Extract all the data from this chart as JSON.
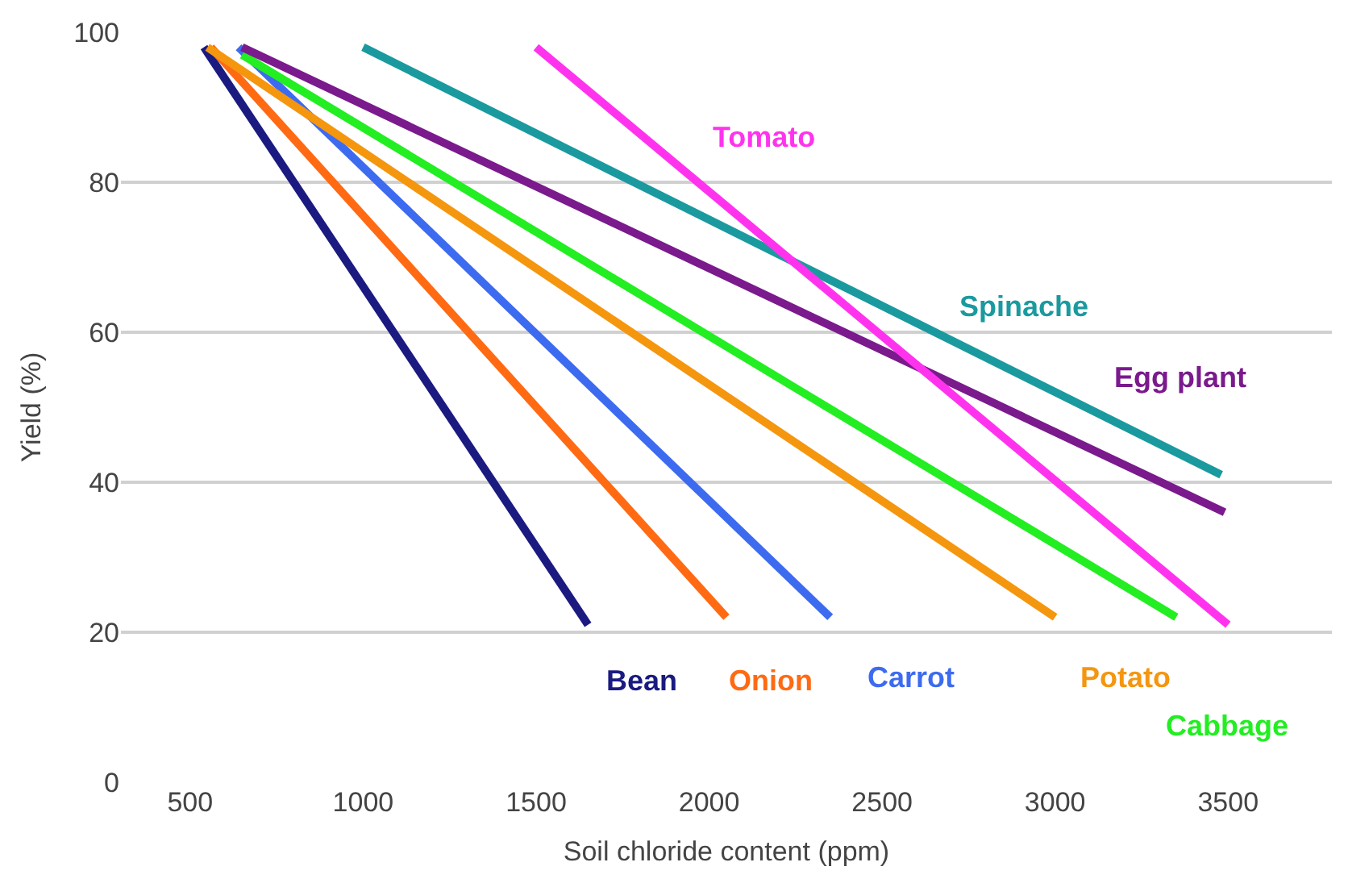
{
  "chart_data": {
    "type": "line",
    "xlabel": "Soil chloride content (ppm)",
    "ylabel": "Yield (%)",
    "xlim": [
      300,
      3800
    ],
    "xticks": [
      500,
      1000,
      1500,
      2000,
      2500,
      3000,
      3500
    ],
    "ylim": [
      0,
      100
    ],
    "yticks": [
      0,
      20,
      40,
      60,
      80,
      100
    ],
    "grid": "y",
    "legend": false,
    "marker": "none",
    "line_style": "solid",
    "series": [
      {
        "name": "Bean",
        "color": "#1a1a80",
        "x": [
          540,
          1650
        ],
        "values": [
          98,
          21
        ]
      },
      {
        "name": "Onion",
        "color": "#ff6a13",
        "x": [
          560,
          2050
        ],
        "values": [
          98,
          22
        ]
      },
      {
        "name": "Carrot",
        "color": "#3d6bf0",
        "x": [
          640,
          2350
        ],
        "values": [
          98,
          22
        ]
      },
      {
        "name": "Potato",
        "color": "#f5960f",
        "x": [
          550,
          3000
        ],
        "values": [
          98,
          22
        ]
      },
      {
        "name": "Cabbage",
        "color": "#22ee22",
        "x": [
          650,
          3350
        ],
        "values": [
          97,
          22
        ]
      },
      {
        "name": "Egg plant",
        "color": "#7a1a8c",
        "x": [
          650,
          3490
        ],
        "values": [
          98,
          36
        ]
      },
      {
        "name": "Spinache",
        "color": "#1a9a9f",
        "x": [
          1000,
          3480
        ],
        "values": [
          98,
          41
        ]
      },
      {
        "name": "Tomato",
        "color": "#ff33ee",
        "x": [
          1500,
          3500
        ],
        "values": [
          98,
          21
        ]
      }
    ]
  }
}
